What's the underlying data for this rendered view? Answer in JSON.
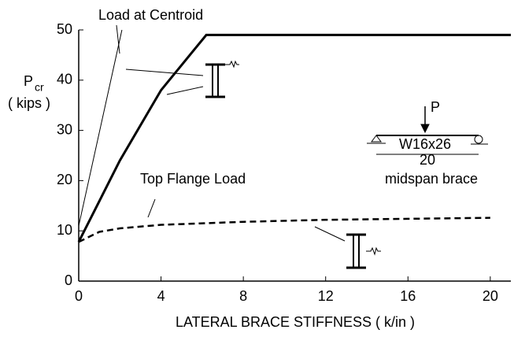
{
  "chart_data": {
    "type": "line",
    "xlabel": "LATERAL BRACE STIFFNESS ( k/in )",
    "ylabel": {
      "main": "P",
      "sub": "cr",
      "unit": "( kips )"
    },
    "xlim": [
      0,
      21
    ],
    "xticks": [
      0,
      4,
      8,
      12,
      16,
      20
    ],
    "ylim": [
      0,
      50
    ],
    "yticks": [
      0,
      10,
      20,
      30,
      40,
      50
    ],
    "series": [
      {
        "color": "#000000",
        "style": "thin",
        "x": [
          0,
          2.1
        ],
        "values": [
          11,
          50
        ]
      },
      {
        "color": "#000000",
        "style": "thick",
        "x": [
          0,
          2,
          4,
          6.2,
          21
        ],
        "values": [
          7.8,
          24,
          38,
          49,
          49
        ]
      },
      {
        "color": "#000000",
        "style": "dashed",
        "x": [
          0,
          1,
          2,
          4,
          8,
          12,
          16,
          20
        ],
        "values": [
          7.8,
          9.8,
          10.5,
          11.2,
          11.8,
          12.2,
          12.4,
          12.6
        ]
      }
    ],
    "annotations": [
      "Load at Centroid",
      "Top Flange Load"
    ],
    "inset": {
      "load": "P",
      "section": "W16x26",
      "span": "20",
      "caption": "midspan brace"
    }
  }
}
